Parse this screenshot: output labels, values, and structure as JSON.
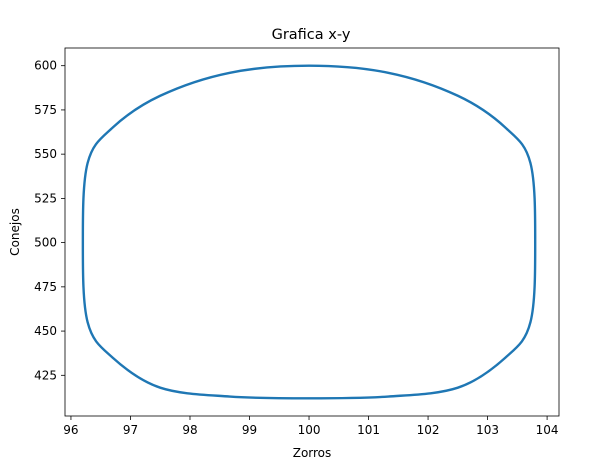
{
  "chart_data": {
    "type": "line",
    "title": "Grafica x-y",
    "xlabel": "Zorros",
    "ylabel": "Conejos",
    "xlim": [
      95.9,
      104.2
    ],
    "ylim": [
      402,
      610
    ],
    "xticks": [
      96,
      97,
      98,
      99,
      100,
      101,
      102,
      103,
      104
    ],
    "yticks": [
      425,
      450,
      475,
      500,
      525,
      550,
      575,
      600
    ],
    "grid": false,
    "series": [
      {
        "color": "#1f77b4",
        "curve": "closed-orbit",
        "x": [
          100,
          101.33,
          102.5,
          103.3,
          103.72,
          103.8,
          103.72,
          103.3,
          102.5,
          101.33,
          100,
          98.67,
          97.5,
          96.7,
          96.28,
          96.2,
          96.28,
          96.7,
          97.5,
          98.67,
          100
        ],
        "y": [
          600,
          596,
          583,
          565,
          545,
          500,
          455,
          435,
          418,
          413,
          412,
          413,
          418,
          435,
          455,
          500,
          545,
          565,
          583,
          596,
          600
        ]
      }
    ]
  }
}
